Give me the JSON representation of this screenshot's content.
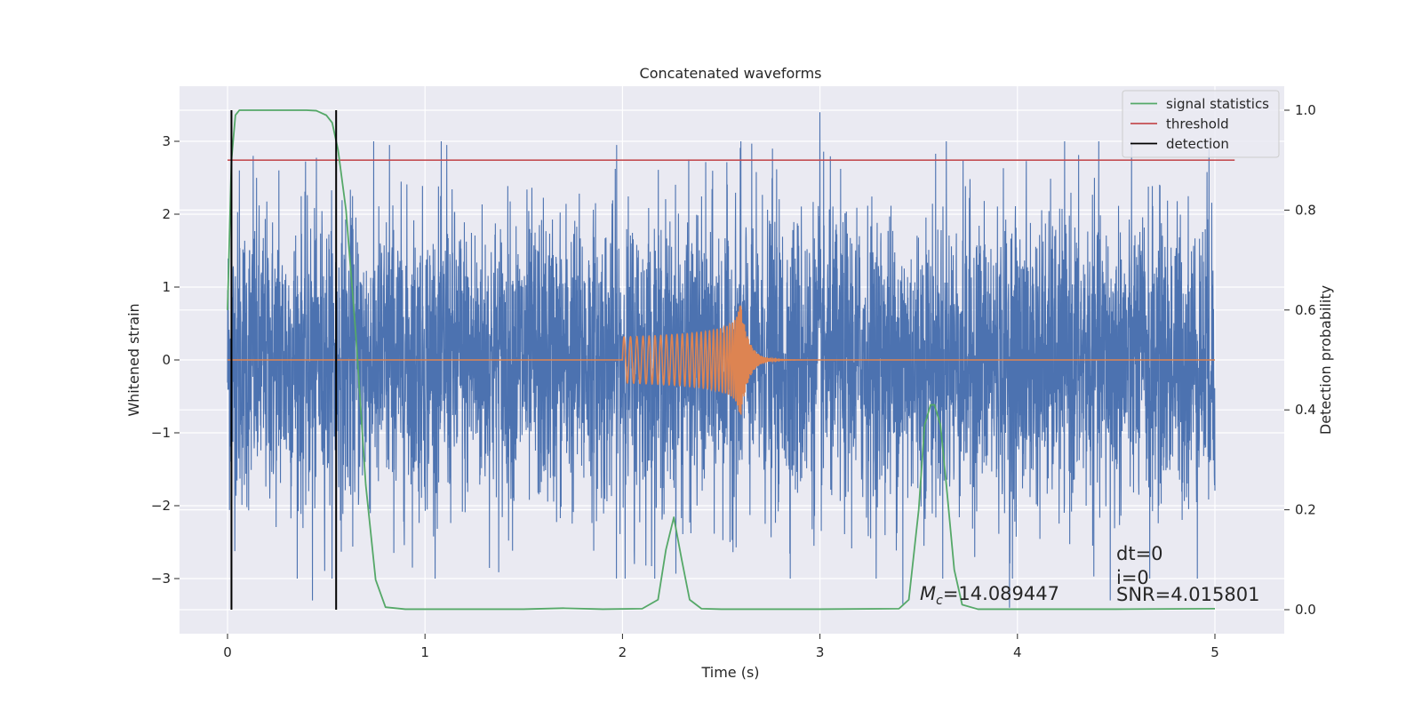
{
  "chart_data": {
    "type": "line",
    "title": "Concatenated waveforms",
    "xlabel": "Time (s)",
    "ylabel": "Whitened strain",
    "y2label": "Detection probability",
    "xlim": [
      -0.25,
      5.35
    ],
    "ylim": [
      -3.75,
      3.75
    ],
    "y2lim": [
      -0.047,
      1.047
    ],
    "xticks": [
      "0",
      "1",
      "2",
      "3",
      "4",
      "5"
    ],
    "yticks": [
      "−3",
      "−2",
      "−1",
      "0",
      "1",
      "2",
      "3"
    ],
    "y2ticks": [
      "0.0",
      "0.2",
      "0.4",
      "0.6",
      "0.8",
      "1.0"
    ],
    "grid": true,
    "background": "#eaeaf2",
    "legend_position": "top-right",
    "legend": [
      {
        "label": "signal statistics",
        "color": "#55a868"
      },
      {
        "label": "threshold",
        "color": "#c44e52"
      },
      {
        "label": "detection",
        "color": "#000000"
      }
    ],
    "series": [
      {
        "name": "strain",
        "color": "#4c72b0",
        "axis": "left",
        "x_range": [
          0,
          5
        ],
        "typical_amplitude": 1.0,
        "peaks": [
          {
            "x": 0.06,
            "y": 2.6
          },
          {
            "x": 0.13,
            "y": 2.8
          },
          {
            "x": 0.26,
            "y": 2.6
          },
          {
            "x": 0.43,
            "y": -3.3
          },
          {
            "x": 0.55,
            "y": 3.1
          },
          {
            "x": 0.82,
            "y": 2.95
          },
          {
            "x": 1.11,
            "y": 2.95
          },
          {
            "x": 1.97,
            "y": 2.95
          },
          {
            "x": 2.06,
            "y": -2.8
          },
          {
            "x": 2.6,
            "y": 3.0
          },
          {
            "x": 2.76,
            "y": 2.9
          },
          {
            "x": 3.0,
            "y": 3.4
          },
          {
            "x": 3.42,
            "y": -3.35
          },
          {
            "x": 3.64,
            "y": 3.0
          },
          {
            "x": 3.96,
            "y": -3.4
          },
          {
            "x": 4.47,
            "y": -3.3
          },
          {
            "x": 4.67,
            "y": -3.0
          },
          {
            "x": 4.97,
            "y": 2.9
          }
        ]
      },
      {
        "name": "injected waveform",
        "color": "#dd8452",
        "axis": "left",
        "chirp": {
          "start": 2.0,
          "merger": 2.6,
          "peak_amplitude": 0.75
        }
      },
      {
        "name": "signal statistics",
        "color": "#55a868",
        "axis": "right",
        "x": [
          0,
          0.02,
          0.04,
          0.06,
          0.1,
          0.2,
          0.4,
          0.45,
          0.5,
          0.53,
          0.56,
          0.6,
          0.65,
          0.7,
          0.75,
          0.8,
          0.9,
          1.5,
          1.7,
          1.9,
          2.1,
          2.18,
          2.22,
          2.26,
          2.3,
          2.34,
          2.4,
          2.5,
          3.0,
          3.4,
          3.45,
          3.5,
          3.53,
          3.56,
          3.58,
          3.61,
          3.64,
          3.68,
          3.72,
          3.8,
          4.5,
          5.0
        ],
        "y": [
          0.6,
          0.9,
          0.99,
          1.0,
          1.0,
          1.0,
          1.0,
          0.999,
          0.99,
          0.975,
          0.92,
          0.8,
          0.55,
          0.25,
          0.06,
          0.005,
          0.001,
          0.001,
          0.003,
          0.001,
          0.002,
          0.02,
          0.12,
          0.185,
          0.1,
          0.02,
          0.002,
          0.001,
          0.001,
          0.002,
          0.02,
          0.2,
          0.37,
          0.41,
          0.41,
          0.37,
          0.25,
          0.08,
          0.01,
          0.001,
          0.001,
          0.002
        ]
      },
      {
        "name": "threshold",
        "color": "#c44e52",
        "axis": "right",
        "x": [
          0,
          5.1
        ],
        "y": [
          0.9,
          0.9
        ]
      },
      {
        "name": "detection",
        "color": "#000000",
        "axis": "right",
        "x": [
          0.02,
          0.55
        ],
        "y": [
          0.0,
          1.0
        ]
      }
    ],
    "annotations": {
      "mc": "=14.089447",
      "mc_symbol": "M",
      "mc_subscript": "c",
      "dt": "dt=0",
      "i": "i=0",
      "snr": "SNR=4.015801"
    }
  }
}
